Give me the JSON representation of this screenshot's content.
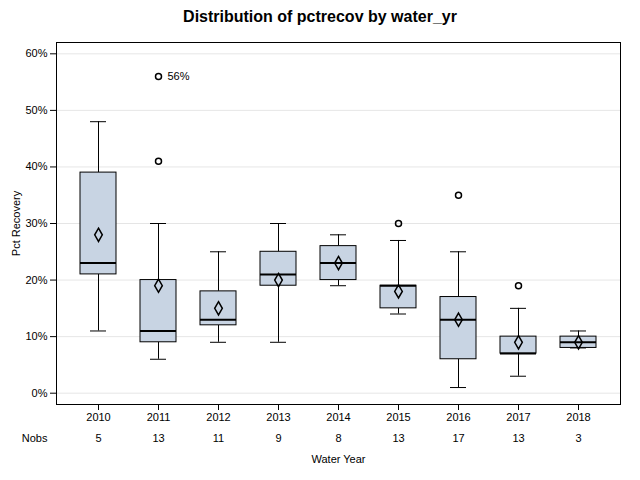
{
  "chart_data": {
    "type": "box",
    "title": "Distribution of pctrecov by water_yr",
    "x_label": "Water Year",
    "y_label": "Pct Recovery",
    "categories": [
      "2010",
      "2011",
      "2012",
      "2013",
      "2014",
      "2015",
      "2016",
      "2017",
      "2018"
    ],
    "boxes": [
      {
        "q1": 21,
        "median": 23,
        "q3": 39,
        "whislo": 11,
        "whishi": 48,
        "mean": 28,
        "fliers": []
      },
      {
        "q1": 9,
        "median": 11,
        "q3": 20,
        "whislo": 6,
        "whishi": 30,
        "mean": 19,
        "fliers": [
          41,
          56
        ]
      },
      {
        "q1": 12,
        "median": 13,
        "q3": 18,
        "whislo": 9,
        "whishi": 25,
        "mean": 15,
        "fliers": []
      },
      {
        "q1": 19,
        "median": 21,
        "q3": 25,
        "whislo": 9,
        "whishi": 30,
        "mean": 20,
        "fliers": []
      },
      {
        "q1": 20,
        "median": 23,
        "q3": 26,
        "whislo": 19,
        "whishi": 28,
        "mean": 23,
        "fliers": []
      },
      {
        "q1": 15,
        "median": 19,
        "q3": 19,
        "whislo": 14,
        "whishi": 27,
        "mean": 18,
        "fliers": [
          30
        ]
      },
      {
        "q1": 6,
        "median": 13,
        "q3": 17,
        "whislo": 1,
        "whishi": 25,
        "mean": 13,
        "fliers": [
          35
        ]
      },
      {
        "q1": 7,
        "median": 7,
        "q3": 10,
        "whislo": 3,
        "whishi": 15,
        "mean": 9,
        "fliers": [
          19
        ]
      },
      {
        "q1": 8,
        "median": 9,
        "q3": 10,
        "whislo": 8,
        "whishi": 11,
        "mean": 9,
        "fliers": []
      }
    ],
    "nobs_label": "Nobs",
    "nobs": [
      5,
      13,
      11,
      9,
      8,
      13,
      17,
      13,
      3
    ],
    "annotations": [
      {
        "x": "2011",
        "y": 56,
        "text": "56%"
      }
    ],
    "ylim": [
      -2,
      62
    ],
    "yticks": [
      {
        "value": 0,
        "label": "0%"
      },
      {
        "value": 10,
        "label": "10%"
      },
      {
        "value": 20,
        "label": "20%"
      },
      {
        "value": 30,
        "label": "30%"
      },
      {
        "value": 40,
        "label": "40%"
      },
      {
        "value": 50,
        "label": "50%"
      },
      {
        "value": 60,
        "label": "60%"
      }
    ],
    "grid": true,
    "color": "#c8d4e3"
  }
}
